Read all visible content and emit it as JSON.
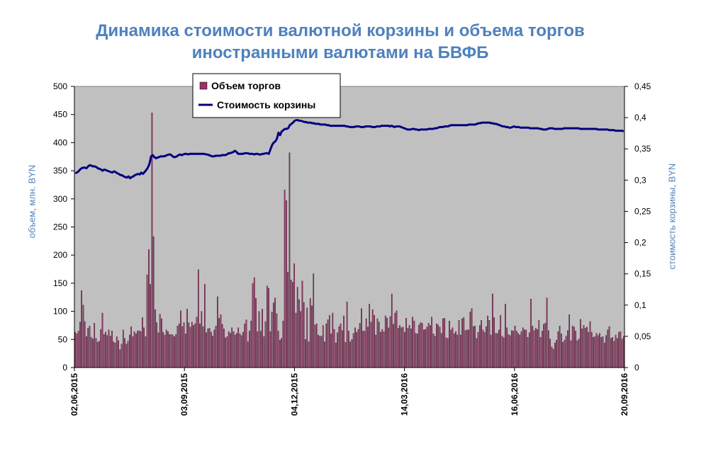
{
  "chart_data": {
    "type": "bar+line",
    "title_line1": "Динамика стоимости валютной корзины и объема торгов",
    "title_line2": "иностранными валютами на БВФБ",
    "ylabel_left": "объем, млн. BYN",
    "ylabel_right": "стоимость корзины, BYN",
    "yleft_lim": [
      0,
      500
    ],
    "yleft_ticks": [
      "0",
      "50",
      "100",
      "150",
      "200",
      "250",
      "300",
      "350",
      "400",
      "450",
      "500"
    ],
    "yright_lim": [
      0,
      0.45
    ],
    "yright_ticks": [
      "0",
      "0,05",
      "0,1",
      "0,15",
      "0,2",
      "0,25",
      "0,3",
      "0,35",
      "0,4",
      "0,45"
    ],
    "x_ticks": [
      "02,06,2015",
      "03,09,2015",
      "04,12,2015",
      "14,03,2016",
      "16,06,2016",
      "20,09,2016"
    ],
    "legend_position": "top-left",
    "plot_background": "#c0c0c0",
    "series": [
      {
        "name": "Объем торгов",
        "kind": "bar",
        "color": "#993366",
        "values": [
          63,
          60,
          65,
          81,
          137,
          111,
          82,
          55,
          70,
          74,
          54,
          51,
          79,
          52,
          45,
          47,
          68,
          97,
          59,
          63,
          57,
          67,
          56,
          65,
          46,
          44,
          55,
          48,
          32,
          42,
          67,
          52,
          42,
          47,
          58,
          73,
          55,
          64,
          60,
          65,
          66,
          64,
          89,
          71,
          55,
          165,
          210,
          148,
          453,
          233,
          103,
          80,
          62,
          95,
          87,
          63,
          58,
          67,
          64,
          59,
          59,
          58,
          55,
          59,
          74,
          78,
          101,
          73,
          80,
          60,
          104,
          80,
          72,
          81,
          75,
          78,
          90,
          174,
          78,
          100,
          73,
          148,
          62,
          69,
          70,
          63,
          56,
          67,
          74,
          126,
          88,
          94,
          77,
          69,
          53,
          55,
          64,
          61,
          71,
          64,
          58,
          61,
          71,
          60,
          57,
          63,
          78,
          85,
          46,
          65,
          83,
          150,
          160,
          123,
          64,
          100,
          65,
          104,
          55,
          82,
          145,
          141,
          64,
          99,
          115,
          124,
          96,
          65,
          49,
          52,
          83,
          316,
          297,
          170,
          382,
          156,
          152,
          185,
          97,
          143,
          121,
          100,
          154,
          116,
          50,
          106,
          46,
          123,
          110,
          167,
          76,
          78,
          58,
          56,
          56,
          75,
          46,
          78,
          85,
          93,
          60,
          97,
          68,
          44,
          62,
          73,
          78,
          66,
          92,
          45,
          117,
          65,
          46,
          50,
          61,
          71,
          63,
          68,
          79,
          105,
          65,
          65,
          87,
          72,
          113,
          81,
          103,
          93,
          58,
          87,
          81,
          63,
          68,
          64,
          92,
          88,
          71,
          91,
          131,
          77,
          97,
          101,
          70,
          75,
          71,
          72,
          63,
          88,
          70,
          75,
          69,
          90,
          83,
          61,
          60,
          76,
          80,
          79,
          67,
          68,
          72,
          79,
          75,
          90,
          60,
          56,
          78,
          76,
          72,
          61,
          87,
          88,
          53,
          52,
          83,
          67,
          71,
          60,
          64,
          58,
          84,
          58,
          87,
          89,
          66,
          67,
          67,
          99,
          105,
          73,
          74,
          52,
          63,
          75,
          84,
          67,
          63,
          73,
          92,
          84,
          58,
          131,
          89,
          61,
          61,
          67,
          93,
          56,
          53,
          113,
          71,
          59,
          57,
          66,
          65,
          74,
          65,
          61,
          58,
          64,
          71,
          67,
          67,
          54,
          62,
          122,
          74,
          66,
          70,
          68,
          84,
          54,
          65,
          77,
          79,
          124,
          66,
          51,
          37,
          33,
          44,
          49,
          64,
          74,
          60,
          45,
          49,
          56,
          66,
          94,
          48,
          74,
          72,
          65,
          48,
          51,
          86,
          69,
          75,
          70,
          72,
          63,
          82,
          63,
          54,
          55,
          61,
          57,
          61,
          54,
          55,
          44,
          57,
          67,
          73,
          52,
          54,
          47,
          58,
          52,
          63,
          64,
          51,
          55
        ]
      },
      {
        "name": "Стоимость корзины",
        "kind": "line",
        "color": "#000080",
        "values": [
          0.311,
          0.312,
          0.314,
          0.317,
          0.319,
          0.32,
          0.32,
          0.319,
          0.322,
          0.324,
          0.323,
          0.322,
          0.322,
          0.321,
          0.319,
          0.318,
          0.317,
          0.315,
          0.317,
          0.316,
          0.315,
          0.314,
          0.313,
          0.312,
          0.314,
          0.313,
          0.311,
          0.31,
          0.308,
          0.308,
          0.306,
          0.305,
          0.304,
          0.306,
          0.303,
          0.305,
          0.306,
          0.308,
          0.309,
          0.31,
          0.309,
          0.312,
          0.31,
          0.313,
          0.316,
          0.32,
          0.326,
          0.338,
          0.34,
          0.337,
          0.335,
          0.336,
          0.337,
          0.338,
          0.338,
          0.338,
          0.339,
          0.34,
          0.341,
          0.341,
          0.339,
          0.337,
          0.337,
          0.338,
          0.34,
          0.341,
          0.34,
          0.341,
          0.342,
          0.342,
          0.341,
          0.342,
          0.342,
          0.342,
          0.342,
          0.342,
          0.342,
          0.342,
          0.342,
          0.342,
          0.342,
          0.341,
          0.341,
          0.34,
          0.339,
          0.338,
          0.338,
          0.339,
          0.339,
          0.339,
          0.339,
          0.34,
          0.34,
          0.34,
          0.341,
          0.343,
          0.343,
          0.344,
          0.345,
          0.347,
          0.345,
          0.342,
          0.342,
          0.342,
          0.342,
          0.343,
          0.343,
          0.343,
          0.342,
          0.342,
          0.342,
          0.341,
          0.342,
          0.342,
          0.341,
          0.341,
          0.342,
          0.342,
          0.343,
          0.343,
          0.342,
          0.349,
          0.356,
          0.36,
          0.362,
          0.366,
          0.376,
          0.372,
          0.378,
          0.38,
          0.382,
          0.382,
          0.383,
          0.388,
          0.39,
          0.392,
          0.395,
          0.396,
          0.396,
          0.395,
          0.395,
          0.394,
          0.393,
          0.393,
          0.392,
          0.392,
          0.392,
          0.391,
          0.391,
          0.39,
          0.39,
          0.39,
          0.389,
          0.389,
          0.389,
          0.389,
          0.388,
          0.388,
          0.387,
          0.387,
          0.387,
          0.387,
          0.387,
          0.387,
          0.387,
          0.387,
          0.387,
          0.387,
          0.386,
          0.386,
          0.385,
          0.385,
          0.385,
          0.385,
          0.386,
          0.386,
          0.386,
          0.385,
          0.385,
          0.385,
          0.386,
          0.386,
          0.386,
          0.386,
          0.385,
          0.385,
          0.385,
          0.386,
          0.386,
          0.386,
          0.387,
          0.387,
          0.387,
          0.387,
          0.387,
          0.386,
          0.387,
          0.386,
          0.385,
          0.386,
          0.386,
          0.386,
          0.385,
          0.384,
          0.383,
          0.382,
          0.381,
          0.381,
          0.381,
          0.382,
          0.382,
          0.381,
          0.381,
          0.38,
          0.381,
          0.381,
          0.381,
          0.381,
          0.381,
          0.382,
          0.382,
          0.382,
          0.382,
          0.383,
          0.383,
          0.384,
          0.385,
          0.385,
          0.385,
          0.386,
          0.386,
          0.386,
          0.387,
          0.388,
          0.388,
          0.388,
          0.388,
          0.388,
          0.388,
          0.388,
          0.388,
          0.388,
          0.388,
          0.388,
          0.389,
          0.389,
          0.389,
          0.389,
          0.389,
          0.39,
          0.391,
          0.391,
          0.392,
          0.392,
          0.392,
          0.392,
          0.392,
          0.392,
          0.391,
          0.391,
          0.39,
          0.39,
          0.389,
          0.388,
          0.387,
          0.386,
          0.386,
          0.385,
          0.385,
          0.384,
          0.384,
          0.385,
          0.386,
          0.385,
          0.385,
          0.385,
          0.384,
          0.384,
          0.384,
          0.384,
          0.384,
          0.384,
          0.383,
          0.383,
          0.383,
          0.383,
          0.383,
          0.383,
          0.382,
          0.382,
          0.381,
          0.381,
          0.381,
          0.382,
          0.383,
          0.383,
          0.383,
          0.382,
          0.382,
          0.382,
          0.382,
          0.382,
          0.382,
          0.383,
          0.383,
          0.383,
          0.383,
          0.383,
          0.383,
          0.383,
          0.383,
          0.383,
          0.383,
          0.382,
          0.382,
          0.382,
          0.382,
          0.382,
          0.382,
          0.382,
          0.382,
          0.382,
          0.382,
          0.382,
          0.381,
          0.381,
          0.381,
          0.381,
          0.381,
          0.381,
          0.381,
          0.38,
          0.38,
          0.38,
          0.38,
          0.379,
          0.379,
          0.379,
          0.379,
          0.379,
          0.378
        ]
      }
    ]
  }
}
